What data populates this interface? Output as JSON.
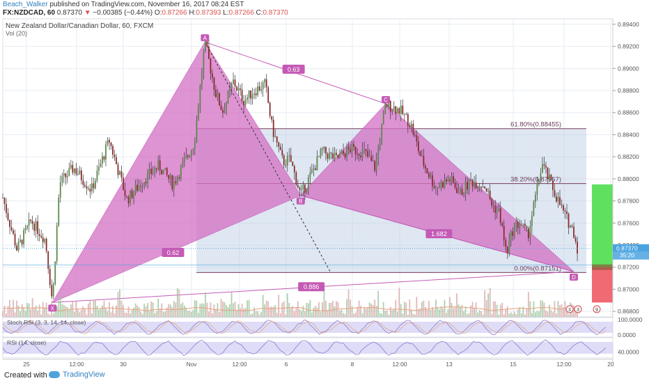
{
  "header": {
    "author": "Beach_Walker",
    "published_text": "published on TradingView.com, November 16, 2017 08:24 EST",
    "symbol": "FX:NZDCAD, 60",
    "last_price": "0.87370",
    "change_arrow": "▼",
    "change": "−0.00385 (−0.44%)",
    "open_label": "O:",
    "open": "0.87266",
    "high_label": "H:",
    "high": "0.87393",
    "low_label": "L:",
    "low": "0.87266",
    "close_label": "C:",
    "close": "0.87370"
  },
  "chart_data": {
    "type": "candlestick",
    "title": "New Zealand Dollar/Canadian Dollar, 60, FXCM",
    "indicator_label": "Vol (20)",
    "y_ticks": [
      "0.89400",
      "0.89200",
      "0.89000",
      "0.88800",
      "0.88600",
      "0.88400",
      "0.88200",
      "0.88000",
      "0.87800",
      "0.87600",
      "0.87400",
      "0.87200",
      "0.87000",
      "0.86800"
    ],
    "ylim": [
      0.8675,
      0.8945
    ],
    "x_ticks": [
      "25",
      "12:00",
      "30",
      "Nov",
      "12:00",
      "6",
      "8",
      "12:00",
      "13",
      "15",
      "12:00",
      "20"
    ],
    "last_price_tag": "0.87370",
    "countdown_tag": "35:20",
    "price_path": [
      {
        "x": 0.0,
        "y": 0.8783
      },
      {
        "x": 2.0,
        "y": 0.8736
      },
      {
        "x": 4.0,
        "y": 0.8762
      },
      {
        "x": 6.0,
        "y": 0.8745
      },
      {
        "x": 7.0,
        "y": 0.8688
      },
      {
        "x": 8.0,
        "y": 0.8796
      },
      {
        "x": 10.0,
        "y": 0.881
      },
      {
        "x": 12.5,
        "y": 0.879
      },
      {
        "x": 15.0,
        "y": 0.8835
      },
      {
        "x": 17.5,
        "y": 0.8781
      },
      {
        "x": 20.0,
        "y": 0.88
      },
      {
        "x": 22.0,
        "y": 0.8812
      },
      {
        "x": 24.0,
        "y": 0.8795
      },
      {
        "x": 26.0,
        "y": 0.882
      },
      {
        "x": 27.0,
        "y": 0.8833
      },
      {
        "x": 28.5,
        "y": 0.8924
      },
      {
        "x": 30.0,
        "y": 0.8878
      },
      {
        "x": 31.0,
        "y": 0.8861
      },
      {
        "x": 32.5,
        "y": 0.8888
      },
      {
        "x": 34.0,
        "y": 0.8871
      },
      {
        "x": 35.5,
        "y": 0.888
      },
      {
        "x": 37.0,
        "y": 0.8886
      },
      {
        "x": 38.0,
        "y": 0.8845
      },
      {
        "x": 39.5,
        "y": 0.8815
      },
      {
        "x": 40.5,
        "y": 0.8818
      },
      {
        "x": 42.0,
        "y": 0.8785
      },
      {
        "x": 43.0,
        "y": 0.8798
      },
      {
        "x": 45.0,
        "y": 0.8825
      },
      {
        "x": 47.0,
        "y": 0.8818
      },
      {
        "x": 49.0,
        "y": 0.8827
      },
      {
        "x": 51.0,
        "y": 0.8824
      },
      {
        "x": 52.5,
        "y": 0.881
      },
      {
        "x": 54.0,
        "y": 0.8868
      },
      {
        "x": 56.0,
        "y": 0.8862
      },
      {
        "x": 57.5,
        "y": 0.885
      },
      {
        "x": 59.0,
        "y": 0.8818
      },
      {
        "x": 61.0,
        "y": 0.8792
      },
      {
        "x": 63.0,
        "y": 0.88
      },
      {
        "x": 64.5,
        "y": 0.8787
      },
      {
        "x": 66.0,
        "y": 0.8798
      },
      {
        "x": 68.0,
        "y": 0.8794
      },
      {
        "x": 69.0,
        "y": 0.8776
      },
      {
        "x": 70.0,
        "y": 0.877
      },
      {
        "x": 71.0,
        "y": 0.8732
      },
      {
        "x": 72.0,
        "y": 0.8756
      },
      {
        "x": 73.0,
        "y": 0.876
      },
      {
        "x": 74.0,
        "y": 0.8748
      },
      {
        "x": 75.0,
        "y": 0.878
      },
      {
        "x": 76.0,
        "y": 0.8814
      },
      {
        "x": 77.5,
        "y": 0.8792
      },
      {
        "x": 79.0,
        "y": 0.877
      },
      {
        "x": 80.5,
        "y": 0.8752
      },
      {
        "x": 81.0,
        "y": 0.8737
      }
    ],
    "harmonic_pattern": {
      "points": [
        {
          "label": "X",
          "x": 7.0,
          "y": 0.8688
        },
        {
          "label": "A",
          "x": 28.5,
          "y": 0.8924
        },
        {
          "label": "B",
          "x": 42.0,
          "y": 0.8785
        },
        {
          "label": "C",
          "x": 54.0,
          "y": 0.8868
        },
        {
          "label": "D",
          "x": 80.5,
          "y": 0.8716
        }
      ],
      "ratios": [
        {
          "text": "0.63",
          "x": 41.0,
          "y": 0.8899
        },
        {
          "text": "0.62",
          "x": 24.0,
          "y": 0.8733
        },
        {
          "text": "1.682",
          "x": 61.5,
          "y": 0.875
        },
        {
          "text": "0.886",
          "x": 43.5,
          "y": 0.8702
        }
      ]
    },
    "fib_levels": [
      {
        "label": "61.80%(0.88455)",
        "value": 0.88455
      },
      {
        "label": "38.20%(0.87957)",
        "value": 0.87957
      },
      {
        "label": "0.00%(0.87151)",
        "value": 0.87151
      }
    ],
    "position_tool": {
      "entry": 0.872,
      "target": 0.8795,
      "stop": 0.8688
    },
    "oscillators": [
      {
        "label": "Stoch RSI (3, 3, 14, 14, close)",
        "ticks": [
          "100.0000",
          "0.0000"
        ]
      },
      {
        "label": "RSI (14, close)",
        "ticks": [
          "40.0000"
        ]
      }
    ],
    "event_badges": [
      "3",
      "3",
      "9"
    ],
    "colors": {
      "up": "#5a8a4a",
      "down": "#8b2a2a",
      "pattern": "#c45ab5",
      "pattern_fill": "#d46fc3",
      "fib_box": "#b8c9e2",
      "grid": "#e6ecf3",
      "target": "#5fe05f",
      "stop": "#ef6a72",
      "osc_fill": "#c8c4f0",
      "link": "#2f7fbf"
    }
  },
  "footer": {
    "created": "Created with",
    "brand": "TradingView"
  }
}
